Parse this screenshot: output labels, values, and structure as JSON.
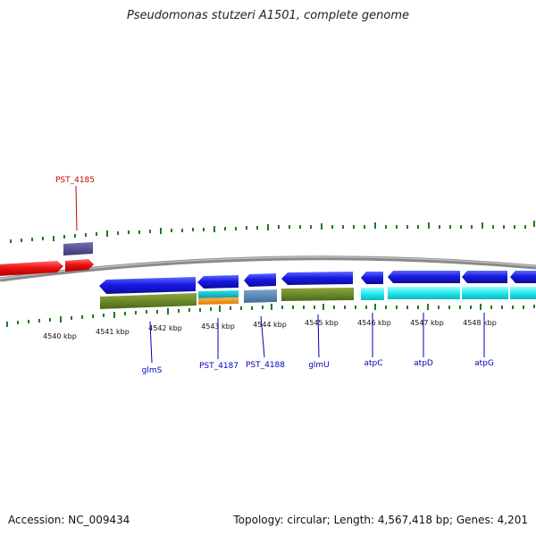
{
  "title": "Pseudomonas stutzeri A1501, complete genome",
  "footer": {
    "accession": "Accession: NC_009434",
    "stats": "Topology: circular; Length: 4,567,418 bp; Genes: 4,201"
  },
  "colors": {
    "backbone": "#8a8a8a",
    "ticks": "#1f7a1f",
    "label_blue": "#0000bb",
    "label_red": "#cc0000"
  },
  "kbp_labels": [
    "4540 kbp",
    "4541 kbp",
    "4542 kbp",
    "4543 kbp",
    "4544 kbp",
    "4545 kbp",
    "4546 kbp",
    "4547 kbp",
    "4548 kbp"
  ],
  "gene_labels": [
    {
      "text": "PST_4185",
      "color": "red"
    },
    {
      "text": "glmS",
      "color": "blue"
    },
    {
      "text": "PST_4187",
      "color": "blue"
    },
    {
      "text": "PST_4188",
      "color": "blue"
    },
    {
      "text": "glmU",
      "color": "blue"
    },
    {
      "text": "atpC",
      "color": "blue"
    },
    {
      "text": "atpD",
      "color": "blue"
    },
    {
      "text": "atpG",
      "color": "blue"
    }
  ]
}
